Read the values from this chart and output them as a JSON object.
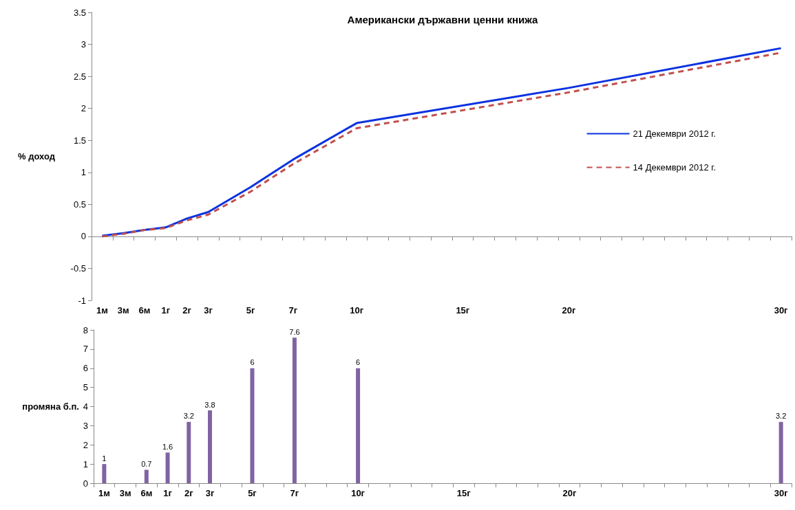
{
  "chart_data": [
    {
      "type": "line",
      "title": "Американски държавни ценни книжа",
      "ylabel": "% доход",
      "categories": [
        "1м",
        "3м",
        "6м",
        "1г",
        "2г",
        "3г",
        null,
        "5г",
        null,
        "7г",
        null,
        null,
        "10г",
        null,
        null,
        null,
        null,
        "15г",
        null,
        null,
        null,
        null,
        "20г",
        null,
        null,
        null,
        null,
        null,
        null,
        null,
        null,
        null,
        "30г"
      ],
      "series": [
        {
          "name": "21 Декември 2012 г.",
          "color": "#0a32e0",
          "line_style": "solid",
          "values": [
            0.01,
            0.05,
            0.1,
            0.14,
            0.28,
            0.38,
            null,
            0.77,
            null,
            1.2,
            null,
            null,
            1.77,
            null,
            null,
            null,
            null,
            null,
            null,
            null,
            null,
            null,
            2.32,
            null,
            null,
            null,
            null,
            null,
            null,
            null,
            null,
            null,
            2.94
          ]
        },
        {
          "name": "14 Декември 2012 г.",
          "color": "#c0504d",
          "line_style": "dashed",
          "values": [
            0.0,
            0.04,
            0.1,
            0.13,
            0.25,
            0.34,
            null,
            0.7,
            null,
            1.13,
            null,
            null,
            1.69,
            null,
            null,
            null,
            null,
            null,
            null,
            null,
            null,
            null,
            2.25,
            null,
            null,
            null,
            null,
            null,
            null,
            null,
            null,
            null,
            2.87
          ]
        }
      ],
      "ylim": [
        -1,
        3.5
      ],
      "yticks": [
        -1,
        -0.5,
        0,
        0.5,
        1,
        1.5,
        2,
        2.5,
        3,
        3.5
      ],
      "legend": "right",
      "marker": "none"
    },
    {
      "type": "bar",
      "ylabel": "промяна б.п.",
      "categories": [
        "1м",
        "3м",
        "6м",
        "1г",
        "2г",
        "3г",
        null,
        "5г",
        null,
        "7г",
        null,
        null,
        "10г",
        null,
        null,
        null,
        null,
        "15г",
        null,
        null,
        null,
        null,
        "20г",
        null,
        null,
        null,
        null,
        null,
        null,
        null,
        null,
        null,
        "30г"
      ],
      "values": [
        1,
        null,
        0.7,
        1.6,
        3.2,
        3.8,
        null,
        6,
        null,
        7.6,
        null,
        null,
        6,
        null,
        null,
        null,
        null,
        null,
        null,
        null,
        null,
        null,
        null,
        null,
        null,
        null,
        null,
        null,
        null,
        null,
        null,
        null,
        3.2
      ],
      "color": "#8064a2",
      "data_labels": true,
      "ylim": [
        0,
        8
      ],
      "yticks": [
        0,
        1,
        2,
        3,
        4,
        5,
        6,
        7,
        8
      ]
    }
  ]
}
